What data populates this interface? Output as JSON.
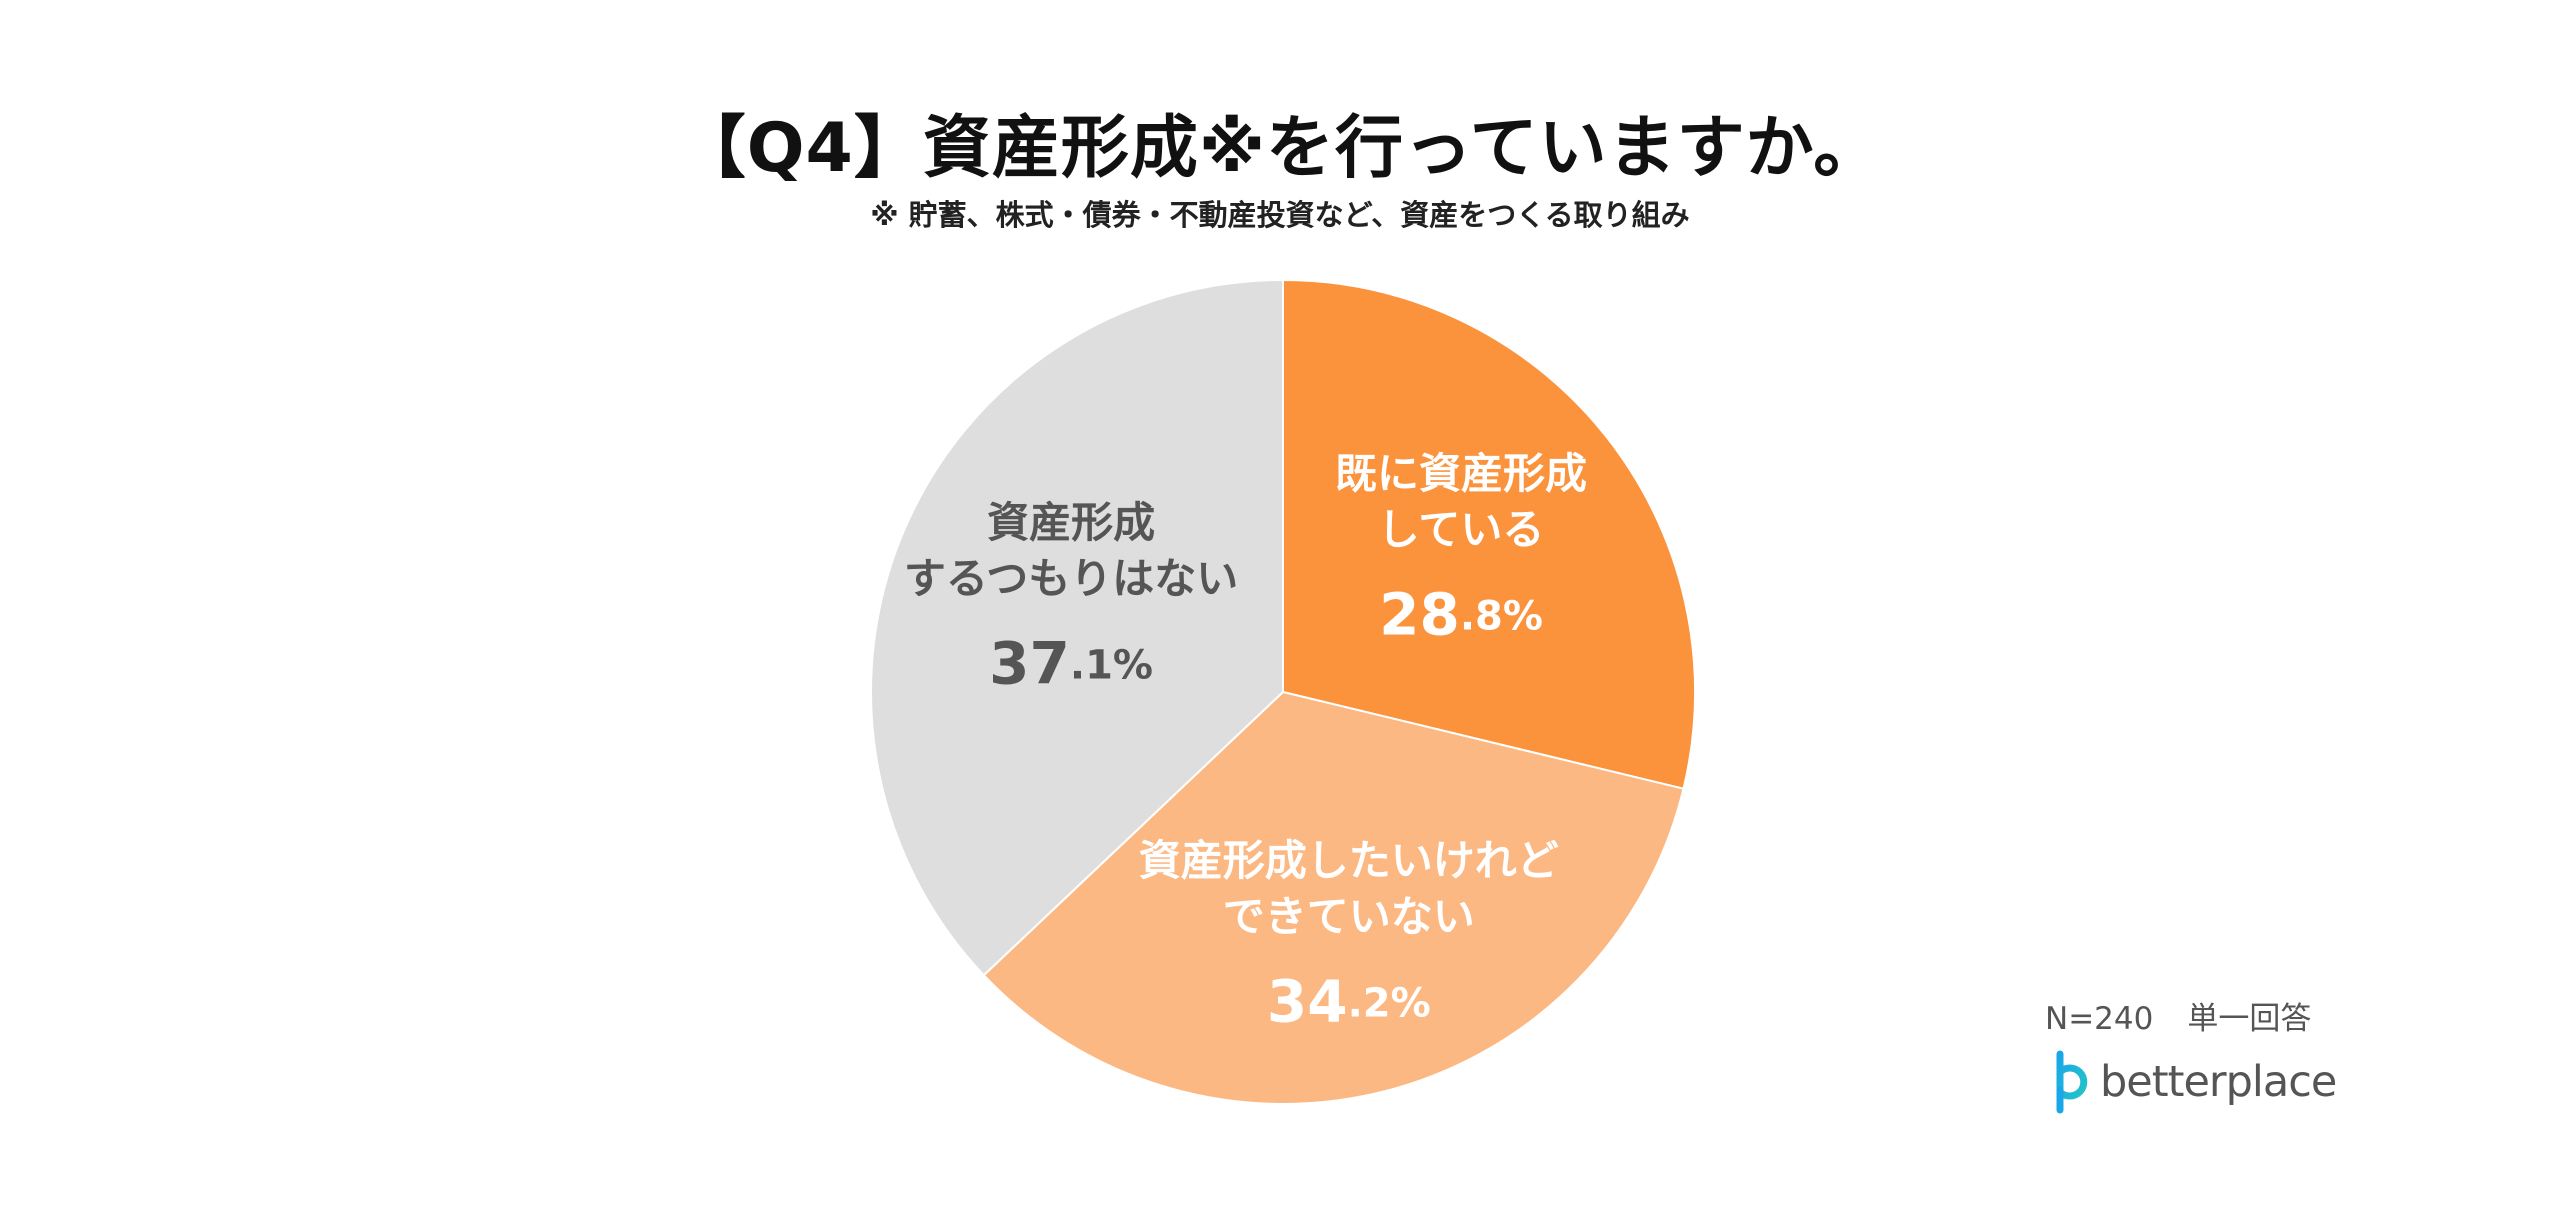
{
  "header": {
    "title": "【Q4】資産形成※を行っていますか。",
    "subtitle": "※ 貯蓄、株式・債券・不動産投資など、資産をつくる取り組み"
  },
  "chart_data": {
    "type": "pie",
    "start_angle_deg": 0,
    "direction": "clockwise",
    "slices": [
      {
        "label_lines": [
          "既に資産形成",
          "している"
        ],
        "value": 28.8,
        "int_part": "28",
        "dec_part": ".8%",
        "color": "#FB923C",
        "text_color": "#ffffff"
      },
      {
        "label_lines": [
          "資産形成したいけれど",
          "できていない"
        ],
        "value": 34.2,
        "int_part": "34",
        "dec_part": ".2%",
        "color": "#FCB883",
        "text_color": "#ffffff"
      },
      {
        "label_lines": [
          "資産形成",
          "するつもりはない"
        ],
        "value": 37.1,
        "int_part": "37",
        "dec_part": ".1%",
        "color": "#DEDEDE",
        "text_color": "#555555"
      }
    ]
  },
  "footer": {
    "sample_size": "N=240",
    "answer_type": "単一回答",
    "brand": "betterplace",
    "brand_color": "#1AA7E8"
  }
}
